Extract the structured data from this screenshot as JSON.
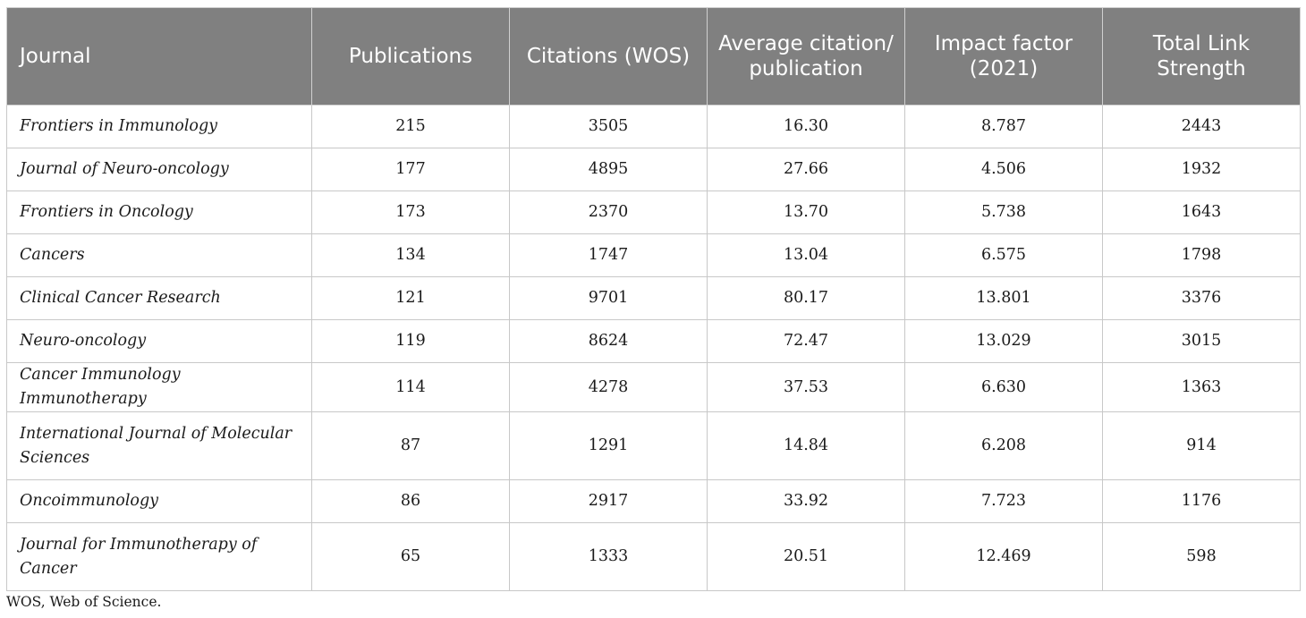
{
  "table": {
    "headers": {
      "journal": "Journal",
      "publications": "Publications",
      "citations": "Citations (WOS)",
      "average": "Average citation/ publication",
      "impact": "Impact factor (2021)",
      "tls": "Total Link Strength"
    },
    "rows": [
      {
        "journal": "Frontiers in Immunology",
        "publications": "215",
        "citations": "3505",
        "average": "16.30",
        "impact": "8.787",
        "tls": "2443"
      },
      {
        "journal": "Journal of Neuro-oncology",
        "publications": "177",
        "citations": "4895",
        "average": "27.66",
        "impact": "4.506",
        "tls": "1932"
      },
      {
        "journal": "Frontiers in Oncology",
        "publications": "173",
        "citations": "2370",
        "average": "13.70",
        "impact": "5.738",
        "tls": "1643"
      },
      {
        "journal": "Cancers",
        "publications": "134",
        "citations": "1747",
        "average": "13.04",
        "impact": "6.575",
        "tls": "1798"
      },
      {
        "journal": "Clinical Cancer Research",
        "publications": "121",
        "citations": "9701",
        "average": "80.17",
        "impact": "13.801",
        "tls": "3376"
      },
      {
        "journal": "Neuro-oncology",
        "publications": "119",
        "citations": "8624",
        "average": "72.47",
        "impact": "13.029",
        "tls": "3015"
      },
      {
        "journal": "Cancer Immunology Immunotherapy",
        "publications": "114",
        "citations": "4278",
        "average": "37.53",
        "impact": "6.630",
        "tls": "1363"
      },
      {
        "journal": "International Journal of Molecular Sciences",
        "publications": "87",
        "citations": "1291",
        "average": "14.84",
        "impact": "6.208",
        "tls": "914"
      },
      {
        "journal": "Oncoimmunology",
        "publications": "86",
        "citations": "2917",
        "average": "33.92",
        "impact": "7.723",
        "tls": "1176"
      },
      {
        "journal": "Journal for Immunotherapy of Cancer",
        "publications": "65",
        "citations": "1333",
        "average": "20.51",
        "impact": "12.469",
        "tls": "598"
      }
    ]
  },
  "footnote": "WOS, Web of Science.",
  "colors": {
    "header_background": "#808080",
    "header_text": "#ffffff",
    "border": "#c8c8c8"
  }
}
